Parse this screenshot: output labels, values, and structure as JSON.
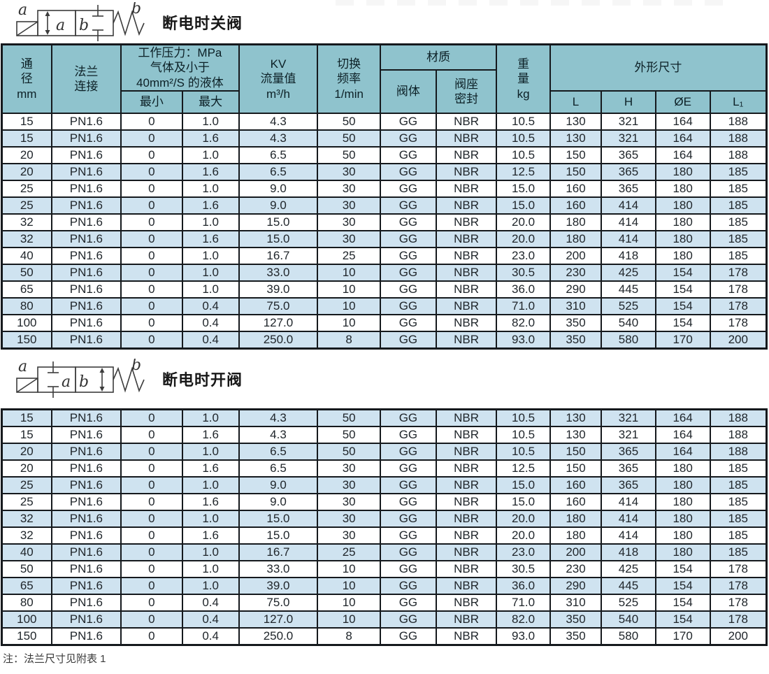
{
  "close_valve": {
    "title": "断电时关阀",
    "rows": [
      [
        "15",
        "PN1.6",
        "0",
        "1.0",
        "4.3",
        "50",
        "GG",
        "NBR",
        "10.5",
        "130",
        "321",
        "164",
        "188"
      ],
      [
        "15",
        "PN1.6",
        "0",
        "1.6",
        "4.3",
        "50",
        "GG",
        "NBR",
        "10.5",
        "130",
        "321",
        "164",
        "188"
      ],
      [
        "20",
        "PN1.6",
        "0",
        "1.0",
        "6.5",
        "50",
        "GG",
        "NBR",
        "10.5",
        "150",
        "365",
        "164",
        "188"
      ],
      [
        "20",
        "PN1.6",
        "0",
        "1.6",
        "6.5",
        "30",
        "GG",
        "NBR",
        "12.5",
        "150",
        "365",
        "180",
        "185"
      ],
      [
        "25",
        "PN1.6",
        "0",
        "1.0",
        "9.0",
        "30",
        "GG",
        "NBR",
        "15.0",
        "160",
        "365",
        "180",
        "185"
      ],
      [
        "25",
        "PN1.6",
        "0",
        "1.6",
        "9.0",
        "30",
        "GG",
        "NBR",
        "15.0",
        "160",
        "414",
        "180",
        "185"
      ],
      [
        "32",
        "PN1.6",
        "0",
        "1.0",
        "15.0",
        "30",
        "GG",
        "NBR",
        "20.0",
        "180",
        "414",
        "180",
        "185"
      ],
      [
        "32",
        "PN1.6",
        "0",
        "1.6",
        "15.0",
        "30",
        "GG",
        "NBR",
        "20.0",
        "180",
        "414",
        "180",
        "185"
      ],
      [
        "40",
        "PN1.6",
        "0",
        "1.0",
        "16.7",
        "25",
        "GG",
        "NBR",
        "23.0",
        "200",
        "418",
        "180",
        "185"
      ],
      [
        "50",
        "PN1.6",
        "0",
        "1.0",
        "33.0",
        "10",
        "GG",
        "NBR",
        "30.5",
        "230",
        "425",
        "154",
        "178"
      ],
      [
        "65",
        "PN1.6",
        "0",
        "1.0",
        "39.0",
        "10",
        "GG",
        "NBR",
        "36.0",
        "290",
        "445",
        "154",
        "178"
      ],
      [
        "80",
        "PN1.6",
        "0",
        "0.4",
        "75.0",
        "10",
        "GG",
        "NBR",
        "71.0",
        "310",
        "525",
        "154",
        "178"
      ],
      [
        "100",
        "PN1.6",
        "0",
        "0.4",
        "127.0",
        "10",
        "GG",
        "NBR",
        "82.0",
        "350",
        "540",
        "154",
        "178"
      ],
      [
        "150",
        "PN1.6",
        "0",
        "0.4",
        "250.0",
        "8",
        "GG",
        "NBR",
        "93.0",
        "350",
        "580",
        "170",
        "200"
      ]
    ]
  },
  "open_valve": {
    "title": "断电时开阀",
    "rows": [
      [
        "15",
        "PN1.6",
        "0",
        "1.0",
        "4.3",
        "50",
        "GG",
        "NBR",
        "10.5",
        "130",
        "321",
        "164",
        "188"
      ],
      [
        "15",
        "PN1.6",
        "0",
        "1.6",
        "4.3",
        "50",
        "GG",
        "NBR",
        "10.5",
        "130",
        "321",
        "164",
        "188"
      ],
      [
        "20",
        "PN1.6",
        "0",
        "1.0",
        "6.5",
        "50",
        "GG",
        "NBR",
        "10.5",
        "150",
        "365",
        "164",
        "188"
      ],
      [
        "20",
        "PN1.6",
        "0",
        "1.6",
        "6.5",
        "30",
        "GG",
        "NBR",
        "12.5",
        "150",
        "365",
        "180",
        "185"
      ],
      [
        "25",
        "PN1.6",
        "0",
        "1.0",
        "9.0",
        "30",
        "GG",
        "NBR",
        "15.0",
        "160",
        "365",
        "180",
        "185"
      ],
      [
        "25",
        "PN1.6",
        "0",
        "1.6",
        "9.0",
        "30",
        "GG",
        "NBR",
        "15.0",
        "160",
        "414",
        "180",
        "185"
      ],
      [
        "32",
        "PN1.6",
        "0",
        "1.0",
        "15.0",
        "30",
        "GG",
        "NBR",
        "20.0",
        "180",
        "414",
        "180",
        "185"
      ],
      [
        "32",
        "PN1.6",
        "0",
        "1.6",
        "15.0",
        "30",
        "GG",
        "NBR",
        "20.0",
        "180",
        "414",
        "180",
        "185"
      ],
      [
        "40",
        "PN1.6",
        "0",
        "1.0",
        "16.7",
        "25",
        "GG",
        "NBR",
        "23.0",
        "200",
        "418",
        "180",
        "185"
      ],
      [
        "50",
        "PN1.6",
        "0",
        "1.0",
        "33.0",
        "10",
        "GG",
        "NBR",
        "30.5",
        "230",
        "425",
        "154",
        "178"
      ],
      [
        "65",
        "PN1.6",
        "0",
        "1.0",
        "39.0",
        "10",
        "GG",
        "NBR",
        "36.0",
        "290",
        "445",
        "154",
        "178"
      ],
      [
        "80",
        "PN1.6",
        "0",
        "0.4",
        "75.0",
        "10",
        "GG",
        "NBR",
        "71.0",
        "310",
        "525",
        "154",
        "178"
      ],
      [
        "100",
        "PN1.6",
        "0",
        "0.4",
        "127.0",
        "10",
        "GG",
        "NBR",
        "82.0",
        "350",
        "540",
        "154",
        "178"
      ],
      [
        "150",
        "PN1.6",
        "0",
        "0.4",
        "250.0",
        "8",
        "GG",
        "NBR",
        "93.0",
        "350",
        "580",
        "170",
        "200"
      ]
    ]
  },
  "header": {
    "diameter": "通\n径\nmm",
    "flange": "法兰\n连接",
    "pressure_group": "工作压力：MPa\n气体及小于\n40mm²/S 的液体",
    "pressure_min": "最小",
    "pressure_max": "最大",
    "kv": "KV\n流量值\nm³/h",
    "frequency": "切换\n频率\n1/min",
    "material_group": "材质",
    "material_body": "阀体",
    "material_seat": "阀座\n密封",
    "weight": "重\n量\nkg",
    "dims_group": "外形尺寸",
    "dim_l": "L",
    "dim_h": "H",
    "dim_oe": "ØE",
    "dim_l1": "L₁"
  },
  "symbols": {
    "close": {
      "outer_left": "a",
      "outer_right": "b",
      "box1": "a",
      "box2": "b"
    },
    "open": {
      "outer_left": "a",
      "outer_right": "b",
      "box1": "a",
      "box2": "b"
    }
  },
  "note": "注：法兰尺寸见附表 1",
  "colors": {
    "header_bg": "#8fc3cd",
    "row_alt_bg": "#cfe3f0",
    "border": "#15191d",
    "title_text": "#181818"
  }
}
